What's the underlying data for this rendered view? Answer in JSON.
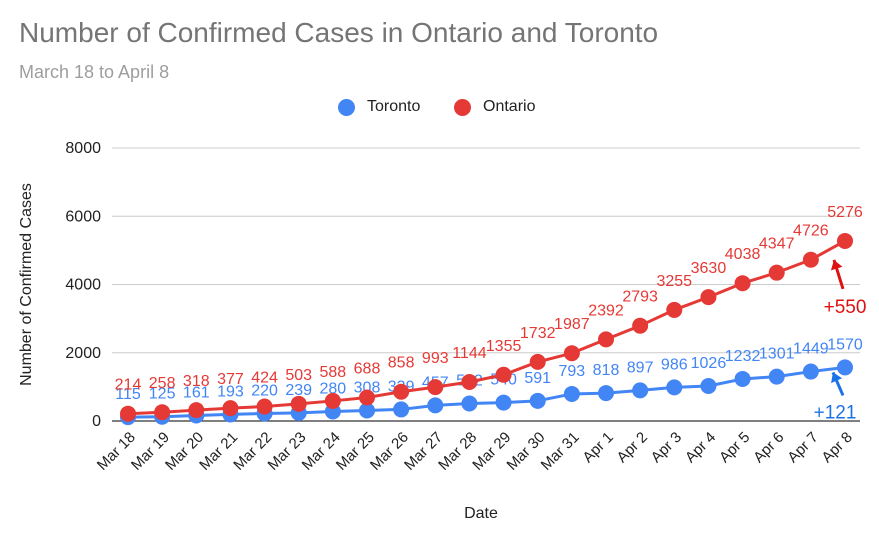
{
  "chart_data": {
    "type": "line",
    "title": "Number of Confirmed Cases in Ontario and Toronto",
    "subtitle": "March 18 to April 8",
    "xlabel": "Date",
    "ylabel": "Number of Confirmed Cases",
    "ylim": [
      0,
      8000
    ],
    "yticks": [
      "0",
      "2000",
      "4000",
      "6000",
      "8000"
    ],
    "categories": [
      "Mar 18",
      "Mar 19",
      "Mar 20",
      "Mar 21",
      "Mar 22",
      "Mar 23",
      "Mar 24",
      "Mar 25",
      "Mar 26",
      "Mar 27",
      "Mar 28",
      "Mar 29",
      "Mar 30",
      "Mar 31",
      "Apr 1",
      "Apr 2",
      "Apr 3",
      "Apr 4",
      "Apr 5",
      "Apr 6",
      "Apr 7",
      "Apr 8"
    ],
    "series": [
      {
        "name": "Toronto",
        "color": "#4285f4",
        "values": [
          115,
          125,
          161,
          193,
          220,
          239,
          280,
          308,
          339,
          457,
          512,
          540,
          591,
          793,
          818,
          897,
          986,
          1026,
          1232,
          1301,
          1449,
          1570
        ],
        "labels": [
          "115",
          "125",
          "161",
          "193",
          "220",
          "239",
          "280",
          "308",
          "339",
          "457",
          "512",
          "540",
          "591",
          "793",
          "818",
          "897",
          "986",
          "1026",
          "1232",
          "1301",
          "1449",
          "1570"
        ]
      },
      {
        "name": "Ontario",
        "color": "#e53935",
        "values": [
          214,
          258,
          318,
          377,
          424,
          503,
          588,
          688,
          858,
          993,
          1144,
          1355,
          1732,
          1987,
          2392,
          2793,
          3255,
          3630,
          4038,
          4347,
          4726,
          5276
        ],
        "labels": [
          "214",
          "258",
          "318",
          "377",
          "424",
          "503",
          "588",
          "688",
          "858",
          "993",
          "1144",
          "1355",
          "1732",
          "1987",
          "2392",
          "2793",
          "3255",
          "3630",
          "4038",
          "4347",
          "4726",
          "5276"
        ]
      }
    ],
    "annotations": [
      {
        "series": "Ontario",
        "text": "+550",
        "color": "#dd1111"
      },
      {
        "series": "Toronto",
        "text": "+121",
        "color": "#1a73e8"
      }
    ]
  }
}
